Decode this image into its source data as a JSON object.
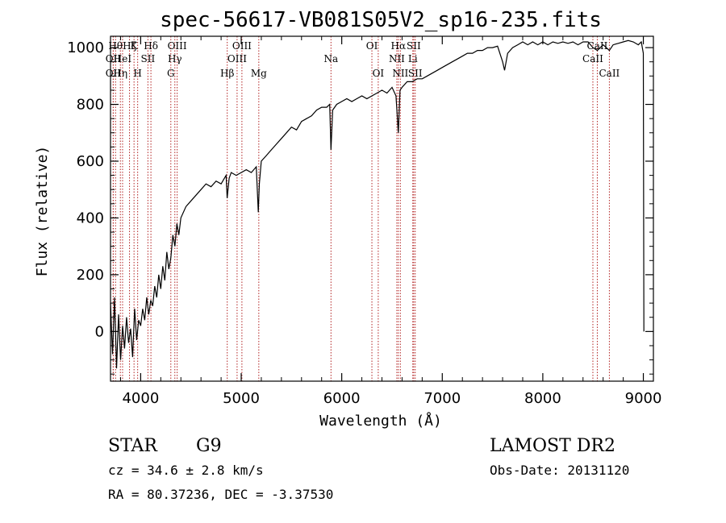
{
  "chart_data": {
    "type": "line",
    "title": "spec-56617-VB081S05V2_sp16-235.fits",
    "xlabel": "Wavelength (Å)",
    "ylabel": "Flux (relative)",
    "xlim": [
      3700,
      9100
    ],
    "ylim": [
      -175,
      1040
    ],
    "x_ticks": [
      4000,
      5000,
      6000,
      7000,
      8000,
      9000
    ],
    "y_ticks": [
      0,
      200,
      400,
      600,
      800,
      1000
    ],
    "grid": false,
    "series": [
      {
        "x": [
          3700,
          3720,
          3740,
          3760,
          3780,
          3800,
          3820,
          3840,
          3860,
          3880,
          3900,
          3920,
          3940,
          3960,
          3980,
          4000,
          4020,
          4040,
          4060,
          4080,
          4100,
          4120,
          4140,
          4160,
          4180,
          4200,
          4220,
          4240,
          4260,
          4280,
          4300,
          4320,
          4340,
          4360,
          4380,
          4400,
          4450,
          4500,
          4550,
          4600,
          4650,
          4700,
          4750,
          4800,
          4850,
          4860,
          4880,
          4900,
          4950,
          5000,
          5050,
          5100,
          5150,
          5170,
          5180,
          5200,
          5250,
          5300,
          5350,
          5400,
          5450,
          5500,
          5550,
          5600,
          5650,
          5700,
          5750,
          5800,
          5850,
          5880,
          5893,
          5910,
          5950,
          6000,
          6050,
          6100,
          6150,
          6200,
          6250,
          6300,
          6350,
          6400,
          6450,
          6500,
          6540,
          6563,
          6580,
          6600,
          6650,
          6700,
          6750,
          6800,
          6850,
          6900,
          6950,
          7000,
          7050,
          7100,
          7150,
          7200,
          7250,
          7300,
          7350,
          7400,
          7450,
          7500,
          7550,
          7600,
          7620,
          7650,
          7700,
          7750,
          7800,
          7850,
          7900,
          7950,
          8000,
          8050,
          8100,
          8150,
          8200,
          8250,
          8300,
          8350,
          8400,
          8450,
          8498,
          8542,
          8600,
          8662,
          8700,
          8750,
          8800,
          8850,
          8900,
          8950,
          8980,
          9000,
          9005
        ],
        "y": [
          100,
          -80,
          120,
          -130,
          60,
          -100,
          20,
          -60,
          50,
          -40,
          10,
          -90,
          80,
          -30,
          40,
          20,
          80,
          40,
          120,
          60,
          110,
          90,
          160,
          120,
          200,
          150,
          230,
          180,
          280,
          220,
          260,
          340,
          300,
          380,
          340,
          400,
          440,
          460,
          480,
          500,
          520,
          510,
          530,
          520,
          550,
          470,
          540,
          560,
          550,
          560,
          570,
          560,
          580,
          420,
          520,
          600,
          620,
          640,
          660,
          680,
          700,
          720,
          710,
          740,
          750,
          760,
          780,
          790,
          790,
          800,
          640,
          780,
          800,
          810,
          820,
          810,
          820,
          830,
          820,
          830,
          840,
          850,
          840,
          860,
          830,
          700,
          850,
          860,
          880,
          880,
          890,
          890,
          900,
          910,
          920,
          930,
          940,
          950,
          960,
          970,
          980,
          980,
          990,
          990,
          1000,
          1000,
          1005,
          950,
          920,
          980,
          1000,
          1010,
          1020,
          1010,
          1020,
          1010,
          1020,
          1010,
          1020,
          1015,
          1020,
          1015,
          1020,
          1010,
          1020,
          1020,
          1000,
          990,
          1010,
          990,
          1010,
          1015,
          1020,
          1025,
          1020,
          1010,
          1020,
          980,
          0
        ]
      }
    ],
    "spectral_lines": [
      {
        "x": 3727,
        "label": "OII",
        "row": 2
      },
      {
        "x": 3727,
        "label": "OII",
        "row": 1
      },
      {
        "x": 3750,
        "label": "Hθ",
        "row": 0
      },
      {
        "x": 3798,
        "label": "Hη",
        "row": 2
      },
      {
        "x": 3820,
        "label": "HeI",
        "row": 1
      },
      {
        "x": 3889,
        "label": "Hζ",
        "row": 0
      },
      {
        "x": 3934,
        "label": "K",
        "row": 0
      },
      {
        "x": 3970,
        "label": "H",
        "row": 2
      },
      {
        "x": 4072,
        "label": "SII",
        "row": 1
      },
      {
        "x": 4102,
        "label": "Hδ",
        "row": 0
      },
      {
        "x": 4300,
        "label": "G",
        "row": 2
      },
      {
        "x": 4340,
        "label": "Hγ",
        "row": 1
      },
      {
        "x": 4363,
        "label": "OIII",
        "row": 0
      },
      {
        "x": 4861,
        "label": "Hβ",
        "row": 2
      },
      {
        "x": 4959,
        "label": "OIII",
        "row": 1
      },
      {
        "x": 5007,
        "label": "OIII",
        "row": 0
      },
      {
        "x": 5175,
        "label": "Mg",
        "row": 2
      },
      {
        "x": 5893,
        "label": "Na",
        "row": 1
      },
      {
        "x": 6300,
        "label": "OI",
        "row": 0
      },
      {
        "x": 6363,
        "label": "OI",
        "row": 2
      },
      {
        "x": 6548,
        "label": "NII",
        "row": 1
      },
      {
        "x": 6563,
        "label": "Hα",
        "row": 0
      },
      {
        "x": 6583,
        "label": "NII",
        "row": 2
      },
      {
        "x": 6707,
        "label": "Li",
        "row": 1
      },
      {
        "x": 6716,
        "label": "SII",
        "row": 0
      },
      {
        "x": 6731,
        "label": "SII",
        "row": 2
      },
      {
        "x": 8498,
        "label": "CaII",
        "row": 1
      },
      {
        "x": 8542,
        "label": "CaII",
        "row": 0
      },
      {
        "x": 8662,
        "label": "CaII",
        "row": 2
      }
    ]
  },
  "footer": {
    "class_label": "STAR",
    "subclass": "G9",
    "survey": "LAMOST DR2",
    "cz_line": "cz = 34.6 ± 2.8 km/s",
    "obs_date": "Obs-Date: 20131120",
    "coords_line": "RA =  80.37236, DEC =  -3.37530"
  },
  "colors": {
    "spectrum": "#000000",
    "line_marker": "#b22222",
    "axes": "#000000"
  }
}
